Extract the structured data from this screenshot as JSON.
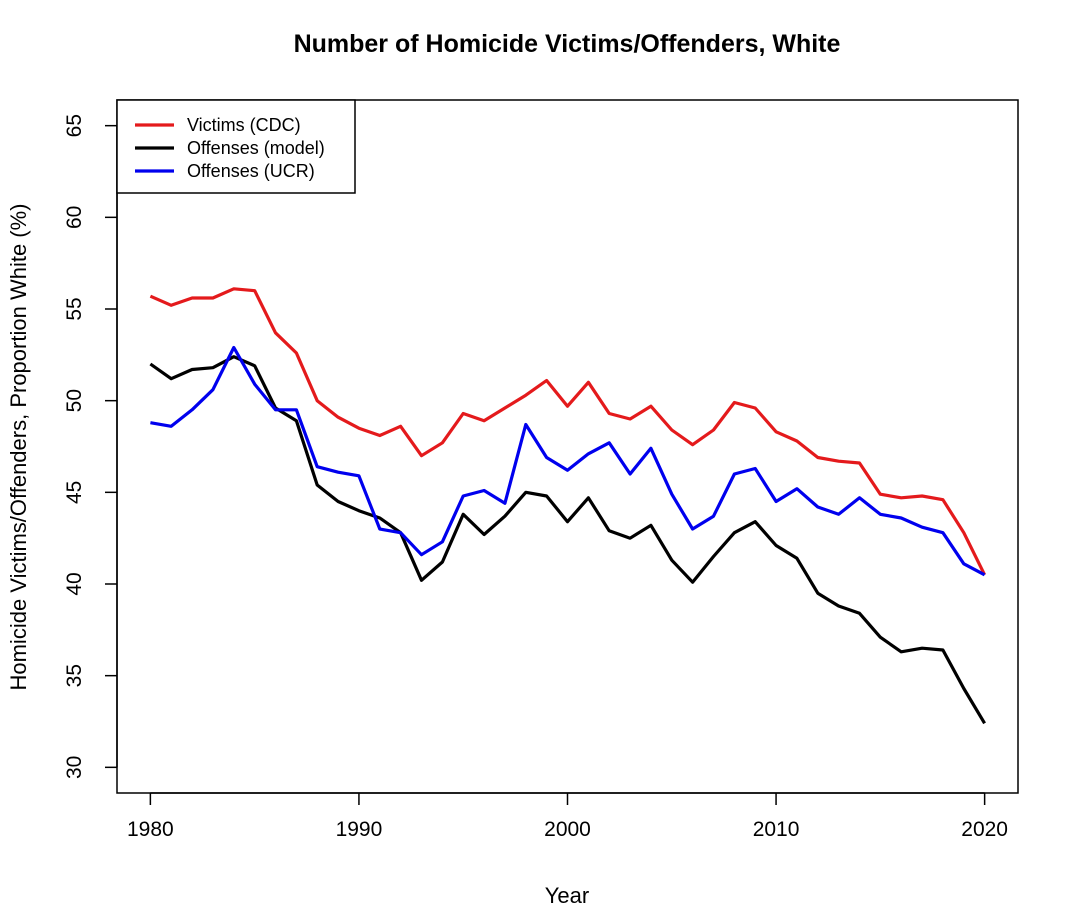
{
  "chart_data": {
    "type": "line",
    "title": "Number of Homicide Victims/Offenders, White",
    "xlabel": "Year",
    "ylabel": "Homicide Victims/Offenders, Proportion White (%)",
    "xlim": [
      1978.4,
      2021.6
    ],
    "ylim": [
      28.6,
      66.4
    ],
    "xticks": [
      1980,
      1990,
      2000,
      2010,
      2020
    ],
    "yticks": [
      30,
      35,
      40,
      45,
      50,
      55,
      60,
      65
    ],
    "grid": false,
    "legend_position": "top-left",
    "x": [
      1980,
      1981,
      1982,
      1983,
      1984,
      1985,
      1986,
      1987,
      1988,
      1989,
      1990,
      1991,
      1992,
      1993,
      1994,
      1995,
      1996,
      1997,
      1998,
      1999,
      2000,
      2001,
      2002,
      2003,
      2004,
      2005,
      2006,
      2007,
      2008,
      2009,
      2010,
      2011,
      2012,
      2013,
      2014,
      2015,
      2016,
      2017,
      2018,
      2019,
      2020
    ],
    "series": [
      {
        "name": "Victims (CDC)",
        "color": "#e41a1c",
        "values": [
          55.7,
          55.2,
          55.6,
          55.6,
          56.1,
          56.0,
          53.7,
          52.6,
          50.0,
          49.1,
          48.5,
          48.1,
          48.6,
          47.0,
          47.7,
          49.3,
          48.9,
          49.6,
          50.3,
          51.1,
          49.7,
          51.0,
          49.3,
          49.0,
          49.7,
          48.4,
          47.6,
          48.4,
          49.9,
          49.6,
          48.3,
          47.8,
          46.9,
          46.7,
          46.6,
          44.9,
          44.7,
          44.8,
          44.6,
          42.8,
          40.5
        ]
      },
      {
        "name": "Offenses (model)",
        "color": "#000000",
        "values": [
          52.0,
          51.2,
          51.7,
          51.8,
          52.4,
          51.9,
          49.6,
          48.9,
          45.4,
          44.5,
          44.0,
          43.6,
          42.8,
          40.2,
          41.2,
          43.8,
          42.7,
          43.7,
          45.0,
          44.8,
          43.4,
          44.7,
          42.9,
          42.5,
          43.2,
          41.3,
          40.1,
          41.5,
          42.8,
          43.4,
          42.1,
          41.4,
          39.5,
          38.8,
          38.4,
          37.1,
          36.3,
          36.5,
          36.4,
          34.3,
          32.4
        ]
      },
      {
        "name": "Offenses (UCR)",
        "color": "#0000ee",
        "values": [
          48.8,
          48.6,
          49.5,
          50.6,
          52.9,
          50.9,
          49.5,
          49.5,
          46.4,
          46.1,
          45.9,
          43.0,
          42.8,
          41.6,
          42.3,
          44.8,
          45.1,
          44.4,
          48.7,
          46.9,
          46.2,
          47.1,
          47.7,
          46.0,
          47.4,
          44.9,
          43.0,
          43.7,
          46.0,
          46.3,
          44.5,
          45.2,
          44.2,
          43.8,
          44.7,
          43.8,
          43.6,
          43.1,
          42.8,
          41.1,
          40.5
        ]
      }
    ]
  }
}
